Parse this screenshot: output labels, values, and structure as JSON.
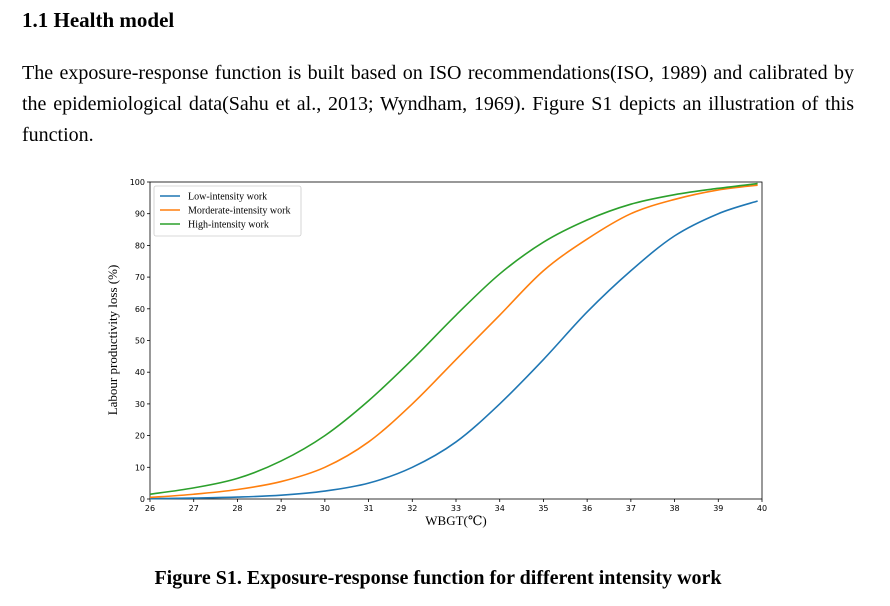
{
  "section": {
    "heading": "1.1 Health model",
    "paragraph": "The exposure-response function is built based on ISO recommendations(ISO, 1989) and calibrated by the epidemiological data(Sahu et al., 2013; Wyndham, 1969). Figure S1 depicts an illustration of this function."
  },
  "caption": "Figure S1. Exposure-response function for different intensity work",
  "chart_data": {
    "type": "line",
    "title": "",
    "xlabel": "WBGT(℃)",
    "ylabel": "Labour productivity loss (%)",
    "xlim": [
      26,
      40
    ],
    "ylim": [
      0,
      100
    ],
    "xticks": [
      26,
      27,
      28,
      29,
      30,
      31,
      32,
      33,
      34,
      35,
      36,
      37,
      38,
      39,
      40
    ],
    "yticks": [
      0,
      10,
      20,
      30,
      40,
      50,
      60,
      70,
      80,
      90,
      100
    ],
    "legend_position": "top-left",
    "grid": false,
    "x": [
      26,
      27,
      28,
      29,
      30,
      31,
      32,
      33,
      34,
      35,
      36,
      37,
      38,
      39,
      39.9
    ],
    "series": [
      {
        "name": "Low-intensity work",
        "color": "#1f77b4",
        "values": [
          0.1,
          0.3,
          0.6,
          1.2,
          2.5,
          5,
          10,
          18,
          30,
          44,
          59,
          72,
          83,
          90,
          94
        ]
      },
      {
        "name": "Morderate-intensity work",
        "color": "#ff7f0e",
        "values": [
          0.5,
          1.5,
          3,
          5.5,
          10,
          18,
          30,
          44,
          58,
          72,
          82,
          90,
          94.5,
          97.5,
          99
        ]
      },
      {
        "name": "High-intensity work",
        "color": "#2ca02c",
        "values": [
          1.5,
          3.5,
          6.5,
          12,
          20,
          31,
          44,
          58,
          71,
          81,
          88,
          93,
          96,
          98,
          99.5
        ]
      }
    ]
  }
}
